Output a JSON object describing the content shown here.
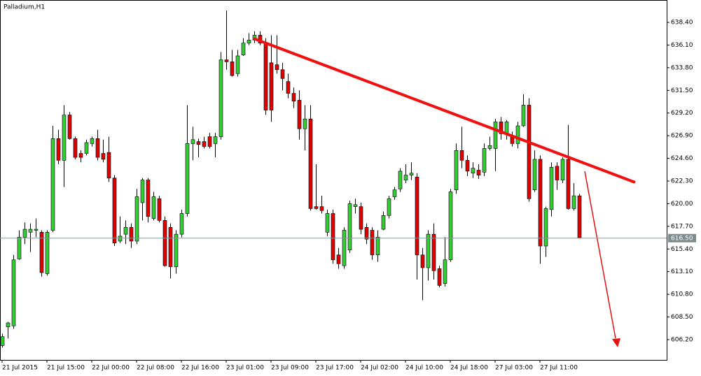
{
  "chart_data": {
    "type": "candlestick",
    "title": "Palladium,H1",
    "categories": [
      "21 Jul 2015",
      null,
      null,
      null,
      null,
      null,
      null,
      null,
      "21 Jul 15:00",
      null,
      null,
      null,
      null,
      null,
      null,
      null,
      "22 Jul 00:00",
      null,
      null,
      null,
      null,
      null,
      null,
      null,
      "22 Jul 08:00",
      null,
      null,
      null,
      null,
      null,
      null,
      null,
      "22 Jul 16:00",
      null,
      null,
      null,
      null,
      null,
      null,
      null,
      "23 Jul 01:00",
      null,
      null,
      null,
      null,
      null,
      null,
      null,
      "23 Jul 09:00",
      null,
      null,
      null,
      null,
      null,
      null,
      null,
      "23 Jul 17:00",
      null,
      null,
      null,
      null,
      null,
      null,
      null,
      "24 Jul 02:00",
      null,
      null,
      null,
      null,
      null,
      null,
      null,
      "24 Jul 10:00",
      null,
      null,
      null,
      null,
      null,
      null,
      null,
      "24 Jul 18:00",
      null,
      null,
      null,
      null,
      null,
      null,
      null,
      "27 Jul 03:00",
      null,
      null,
      null,
      null,
      null,
      null,
      null,
      "27 Jul 11:00",
      null,
      null,
      null,
      null,
      null,
      null,
      null
    ],
    "open": [
      605.6,
      607.5,
      607.6,
      614.4,
      616.6,
      617.1,
      617.3,
      617.1,
      612.9,
      617.3,
      626.6,
      624.4,
      629.0,
      626.6,
      625.1,
      625.1,
      626.1,
      626.6,
      625.1,
      625.2,
      622.6,
      616.2,
      616.9,
      617.6,
      616.2,
      620.1,
      622.4,
      618.5,
      620.5,
      618.3,
      617.6,
      613.6,
      616.9,
      619.0,
      626.1,
      626.3,
      626.3,
      626.8,
      626.1,
      626.8,
      634.6,
      634.4,
      633.2,
      635.1,
      636.3,
      636.6,
      637.1,
      636.3,
      634.3,
      634.1,
      633.6,
      632.4,
      631.2,
      630.5,
      627.6,
      628.6,
      619.7,
      619.7,
      617.1,
      619.0,
      614.8,
      613.7,
      615.3,
      619.7,
      619.7,
      617.6,
      617.3,
      614.8,
      617.4,
      618.8,
      620.7,
      621.5,
      622.4,
      622.9,
      622.7,
      614.8,
      613.5,
      616.9,
      613.4,
      611.9,
      614.3,
      621.4,
      625.4,
      624.4,
      623.1,
      623.4,
      623.2,
      625.6,
      625.6,
      628.3,
      627.1,
      626.8,
      626.1,
      627.9,
      630.0,
      621.4,
      624.5,
      615.7,
      619.4,
      623.8,
      622.4,
      624.5,
      619.5,
      620.8
    ],
    "high": [
      606.8,
      608.0,
      614.8,
      617.3,
      618.1,
      618.0,
      618.5,
      617.3,
      617.3,
      627.9,
      627.5,
      630.0,
      629.3,
      626.8,
      625.4,
      626.5,
      626.8,
      627.5,
      626.5,
      626.8,
      622.9,
      618.7,
      618.3,
      618.0,
      621.5,
      622.6,
      622.6,
      621.2,
      620.8,
      618.7,
      618.0,
      617.3,
      619.4,
      630.0,
      627.8,
      626.6,
      626.8,
      627.2,
      627.2,
      635.4,
      639.6,
      635.6,
      635.6,
      636.8,
      637.3,
      637.5,
      637.5,
      636.8,
      637.1,
      637.1,
      634.3,
      633.2,
      631.8,
      631.5,
      630.0,
      630.0,
      624.0,
      620.8,
      619.4,
      619.4,
      615.5,
      617.6,
      620.3,
      620.5,
      620.1,
      618.0,
      617.6,
      617.3,
      619.2,
      620.8,
      621.7,
      623.6,
      624.0,
      624.2,
      623.1,
      615.5,
      617.3,
      618.0,
      613.7,
      616.6,
      621.5,
      626.1,
      627.8,
      624.9,
      624.2,
      624.0,
      626.1,
      626.8,
      628.6,
      628.8,
      628.5,
      627.3,
      628.3,
      631.1,
      630.7,
      625.4,
      624.9,
      619.7,
      624.2,
      624.2,
      624.7,
      628.0,
      622.1,
      621.0
    ],
    "low": [
      605.4,
      606.3,
      607.3,
      614.3,
      615.9,
      615.1,
      616.6,
      612.6,
      612.7,
      617.1,
      624.0,
      621.7,
      626.5,
      624.5,
      624.2,
      624.9,
      625.8,
      624.4,
      624.2,
      622.2,
      615.7,
      616.0,
      615.9,
      615.5,
      615.9,
      618.3,
      618.1,
      618.3,
      618.1,
      613.6,
      612.4,
      612.9,
      616.6,
      618.7,
      624.4,
      624.7,
      625.6,
      625.6,
      624.7,
      626.5,
      633.6,
      632.9,
      632.9,
      635.0,
      636.1,
      636.3,
      636.1,
      629.0,
      628.3,
      633.2,
      631.5,
      630.7,
      629.7,
      626.5,
      625.4,
      619.3,
      619.4,
      619.0,
      616.7,
      613.9,
      613.4,
      613.4,
      615.0,
      619.0,
      616.9,
      615.9,
      614.3,
      614.1,
      617.3,
      618.5,
      620.4,
      621.2,
      622.1,
      622.4,
      612.3,
      610.2,
      612.2,
      612.3,
      611.5,
      611.6,
      614.1,
      621.0,
      623.6,
      622.8,
      622.6,
      622.5,
      622.8,
      625.4,
      623.3,
      626.5,
      626.5,
      625.8,
      625.6,
      627.8,
      620.2,
      621.2,
      613.9,
      614.6,
      618.7,
      621.4,
      622.1,
      619.4,
      619.3,
      616.5
    ],
    "close": [
      606.5,
      607.9,
      614.3,
      616.6,
      617.4,
      617.4,
      617.4,
      613.0,
      617.1,
      626.6,
      624.4,
      629.0,
      626.6,
      624.7,
      624.7,
      626.2,
      626.6,
      624.7,
      624.5,
      622.6,
      616.0,
      616.7,
      617.6,
      616.2,
      620.7,
      622.4,
      618.7,
      620.7,
      618.3,
      613.7,
      613.6,
      616.9,
      619.0,
      626.1,
      626.5,
      626.0,
      625.8,
      625.8,
      626.8,
      634.6,
      634.4,
      633.0,
      635.0,
      636.3,
      636.6,
      637.1,
      636.3,
      629.5,
      629.5,
      633.6,
      632.7,
      631.2,
      630.4,
      627.6,
      628.6,
      619.5,
      619.5,
      619.3,
      619.0,
      614.3,
      613.9,
      617.3,
      620.0,
      619.9,
      617.4,
      616.4,
      614.8,
      616.6,
      618.8,
      620.5,
      621.4,
      623.3,
      622.9,
      623.1,
      614.8,
      613.5,
      616.9,
      613.2,
      611.7,
      614.3,
      621.2,
      625.4,
      624.4,
      623.3,
      623.6,
      622.9,
      625.6,
      625.9,
      628.3,
      627.1,
      628.3,
      626.1,
      627.9,
      630.0,
      620.5,
      624.5,
      615.7,
      619.5,
      623.7,
      622.4,
      624.5,
      619.5,
      620.8,
      616.5
    ],
    "up_color": "#32cd32",
    "down_color": "#e00000",
    "ylim": [
      604.14,
      640.53
    ],
    "yticks": [
      {
        "value": 606.2,
        "label": "606.20"
      },
      {
        "value": 608.5,
        "label": "608.50"
      },
      {
        "value": 610.8,
        "label": "610.80"
      },
      {
        "value": 613.1,
        "label": "613.10"
      },
      {
        "value": 615.4,
        "label": "615.40"
      },
      {
        "value": 617.7,
        "label": "617.70"
      },
      {
        "value": 620,
        "label": "620.00"
      },
      {
        "value": 622.3,
        "label": "622.30"
      },
      {
        "value": 624.6,
        "label": "624.60"
      },
      {
        "value": 626.9,
        "label": "626.90"
      },
      {
        "value": 629.2,
        "label": "629.20"
      },
      {
        "value": 631.5,
        "label": "631.50"
      },
      {
        "value": 633.8,
        "label": "633.80"
      },
      {
        "value": 636.1,
        "label": "636.10"
      },
      {
        "value": 638.4,
        "label": "638.40"
      }
    ],
    "current_price": {
      "value": 616.5,
      "label": "616.50"
    },
    "grid": false
  }
}
